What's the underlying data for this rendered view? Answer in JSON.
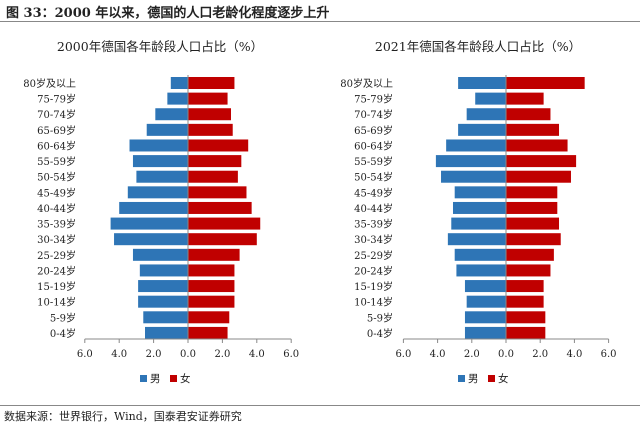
{
  "figure_title": "图 33：2000 年以来，德国的人口老龄化程度逐步上升",
  "source": "数据来源：世界银行，Wind，国泰君安证券研究",
  "colors": {
    "male": "#2e75b6",
    "female": "#c00000"
  },
  "chart_data": [
    {
      "type": "bar",
      "orientation": "horizontal-pyramid",
      "title": "2000年德国各年龄段人口占比（%）",
      "categories": [
        "80岁及以上",
        "75-79岁",
        "70-74岁",
        "65-69岁",
        "60-64岁",
        "55-59岁",
        "50-54岁",
        "45-49岁",
        "40-44岁",
        "35-39岁",
        "30-34岁",
        "25-29岁",
        "20-24岁",
        "15-19岁",
        "10-14岁",
        "5-9岁",
        "0-4岁"
      ],
      "series": [
        {
          "name": "男",
          "values": [
            1.0,
            1.2,
            1.9,
            2.4,
            3.4,
            3.2,
            3.0,
            3.5,
            4.0,
            4.5,
            4.3,
            3.2,
            2.8,
            2.9,
            2.9,
            2.6,
            2.5
          ]
        },
        {
          "name": "女",
          "values": [
            2.7,
            2.3,
            2.5,
            2.6,
            3.5,
            3.1,
            2.9,
            3.4,
            3.7,
            4.2,
            4.0,
            3.0,
            2.7,
            2.7,
            2.7,
            2.4,
            2.3
          ]
        }
      ],
      "xlim": [
        -6,
        6
      ],
      "x_tick_labels": [
        "6.0",
        "4.0",
        "2.0",
        "0.0",
        "2.0",
        "4.0",
        "6.0"
      ],
      "grid": false,
      "legend_position": "bottom"
    },
    {
      "type": "bar",
      "orientation": "horizontal-pyramid",
      "title": "2021年德国各年龄段人口占比（%）",
      "categories": [
        "80岁及以上",
        "75-79岁",
        "70-74岁",
        "65-69岁",
        "60-64岁",
        "55-59岁",
        "50-54岁",
        "45-49岁",
        "40-44岁",
        "35-39岁",
        "30-34岁",
        "25-29岁",
        "20-24岁",
        "15-19岁",
        "10-14岁",
        "5-9岁",
        "0-4岁"
      ],
      "series": [
        {
          "name": "男",
          "values": [
            2.8,
            1.8,
            2.3,
            2.8,
            3.5,
            4.1,
            3.8,
            3.0,
            3.1,
            3.2,
            3.4,
            3.0,
            2.9,
            2.4,
            2.3,
            2.4,
            2.4
          ]
        },
        {
          "name": "女",
          "values": [
            4.6,
            2.2,
            2.6,
            3.1,
            3.6,
            4.1,
            3.8,
            3.0,
            3.0,
            3.1,
            3.2,
            2.8,
            2.6,
            2.2,
            2.2,
            2.3,
            2.3
          ]
        }
      ],
      "xlim": [
        -6,
        6
      ],
      "x_tick_labels": [
        "6.0",
        "4.0",
        "2.0",
        "0.0",
        "2.0",
        "4.0",
        "6.0"
      ],
      "grid": false,
      "legend_position": "bottom"
    }
  ]
}
